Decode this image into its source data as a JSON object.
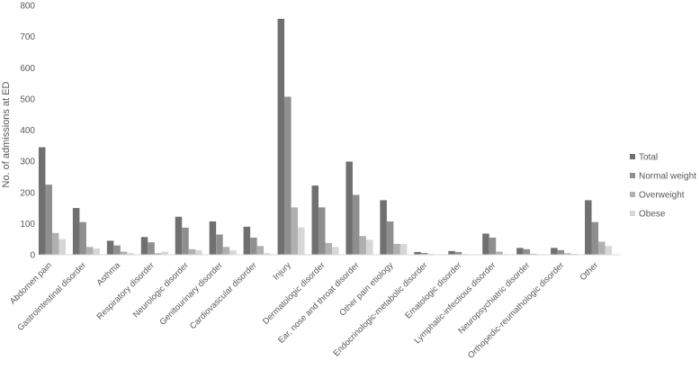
{
  "chart_data": {
    "type": "bar",
    "ylabel": "No. of admissions at ED",
    "ylim": [
      0,
      800
    ],
    "yticks": [
      0,
      100,
      200,
      300,
      400,
      500,
      600,
      700,
      800
    ],
    "grid": false,
    "legend_position": "right",
    "categories": [
      "Abdomen pain",
      "Gastrointestinal disorder",
      "Asthma",
      "Respiratory disorder",
      "Neurologic disorder",
      "Genitourinary disorder",
      "Cardiovascular disorder",
      "Injury",
      "Dermatologic disorder",
      "Ear, nose and throat disorder",
      "Other pain etiology",
      "Endocrinologic-metabolic disorder",
      "Ematologic disorder",
      "Lymphatic-infectious disorder",
      "Neuropsychiatric disorder",
      "Orthopedic-reumathologic disorder",
      "Other"
    ],
    "series": [
      {
        "name": "Total",
        "color": "#707070",
        "values": [
          345,
          150,
          45,
          57,
          122,
          107,
          90,
          757,
          222,
          299,
          175,
          9,
          12,
          68,
          22,
          22,
          175
        ]
      },
      {
        "name": "Normal weight",
        "color": "#8f8f8f",
        "values": [
          225,
          105,
          30,
          40,
          87,
          65,
          55,
          507,
          152,
          192,
          107,
          6,
          9,
          55,
          18,
          15,
          105
        ]
      },
      {
        "name": "Overweight",
        "color": "#b0b0b0",
        "values": [
          70,
          25,
          10,
          5,
          18,
          25,
          28,
          152,
          38,
          60,
          35,
          2,
          2,
          10,
          3,
          5,
          42
        ]
      },
      {
        "name": "Obese",
        "color": "#d6d6d6",
        "values": [
          50,
          20,
          5,
          10,
          15,
          14,
          5,
          88,
          25,
          48,
          35,
          1,
          1,
          2,
          2,
          3,
          28
        ]
      }
    ]
  }
}
